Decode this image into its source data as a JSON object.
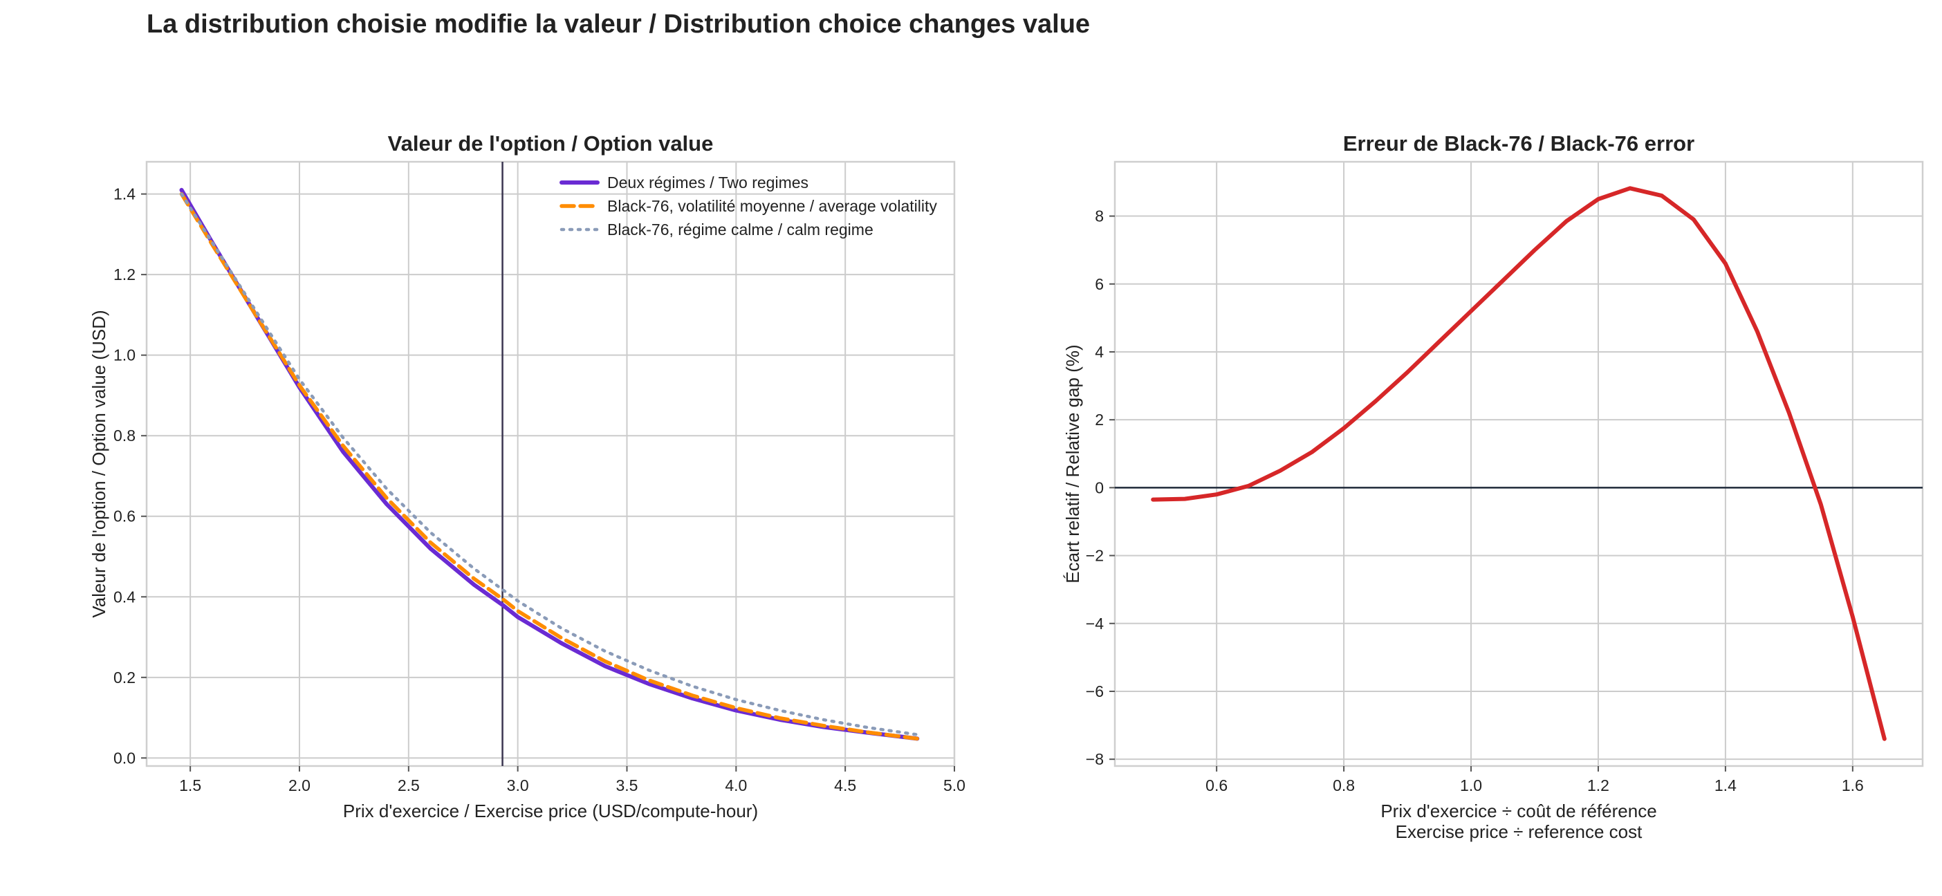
{
  "title": "La distribution choisie modifie la valeur / Distribution choice changes value",
  "colors": {
    "two_regimes": "#6a2bd3",
    "avg_vol": "#ff8c00",
    "calm": "#8a9bb8",
    "error": "#d62728",
    "ref_line": "#3a3550",
    "zero_line": "#1f2a3a"
  },
  "chart_data": [
    {
      "type": "line",
      "title": "Valeur de l'option / Option value",
      "xlabel": "Prix d'exercice / Exercise price (USD/compute-hour)",
      "ylabel": "Valeur de l'option / Option value (USD)",
      "xlim": [
        1.3,
        5.0
      ],
      "ylim": [
        -0.02,
        1.48
      ],
      "xticks": [
        1.5,
        2.0,
        2.5,
        3.0,
        3.5,
        4.0,
        4.5,
        5.0
      ],
      "xtick_labels": [
        "1.5",
        "2.0",
        "2.5",
        "3.0",
        "3.5",
        "4.0",
        "4.5",
        "5.0"
      ],
      "yticks": [
        0.0,
        0.2,
        0.4,
        0.6,
        0.8,
        1.0,
        1.2,
        1.4
      ],
      "ytick_labels": [
        "0.0",
        "0.2",
        "0.4",
        "0.6",
        "0.8",
        "1.0",
        "1.2",
        "1.4"
      ],
      "grid": true,
      "legend_position": "top-right",
      "vline_x": 2.93,
      "series": [
        {
          "name": "Deux régimes / Two regimes",
          "style": "solid",
          "x": [
            1.46,
            1.6,
            1.8,
            2.0,
            2.2,
            2.4,
            2.6,
            2.8,
            2.93,
            3.0,
            3.2,
            3.4,
            3.6,
            3.8,
            4.0,
            4.2,
            4.4,
            4.6,
            4.83
          ],
          "y": [
            1.41,
            1.28,
            1.1,
            0.92,
            0.76,
            0.63,
            0.52,
            0.43,
            0.38,
            0.35,
            0.285,
            0.228,
            0.184,
            0.148,
            0.118,
            0.095,
            0.077,
            0.063,
            0.048
          ]
        },
        {
          "name": "Black-76, volatilité moyenne / average volatility",
          "style": "dashed",
          "x": [
            1.46,
            1.6,
            1.8,
            2.0,
            2.2,
            2.4,
            2.6,
            2.8,
            2.93,
            3.0,
            3.2,
            3.4,
            3.6,
            3.8,
            4.0,
            4.2,
            4.4,
            4.6,
            4.83
          ],
          "y": [
            1.4,
            1.275,
            1.1,
            0.925,
            0.775,
            0.645,
            0.535,
            0.445,
            0.395,
            0.365,
            0.298,
            0.24,
            0.193,
            0.155,
            0.124,
            0.099,
            0.08,
            0.064,
            0.048
          ]
        },
        {
          "name": "Black-76, régime calme / calm regime",
          "style": "dotted",
          "x": [
            1.46,
            1.6,
            1.8,
            2.0,
            2.2,
            2.4,
            2.6,
            2.8,
            2.93,
            3.0,
            3.2,
            3.4,
            3.6,
            3.8,
            4.0,
            4.2,
            4.4,
            4.6,
            4.83
          ],
          "y": [
            1.4,
            1.28,
            1.11,
            0.94,
            0.795,
            0.668,
            0.56,
            0.47,
            0.418,
            0.39,
            0.322,
            0.265,
            0.218,
            0.178,
            0.145,
            0.118,
            0.095,
            0.076,
            0.058
          ]
        }
      ]
    },
    {
      "type": "line",
      "title": "Erreur de Black-76 / Black-76 error",
      "xlabel": "Prix d'exercice ÷ coût de référence",
      "xlabel2": "Exercise price ÷ reference cost",
      "ylabel": "Écart relatif / Relative gap (%)",
      "xlim": [
        0.44,
        1.71
      ],
      "ylim": [
        -8.2,
        9.6
      ],
      "xticks": [
        0.6,
        0.8,
        1.0,
        1.2,
        1.4,
        1.6
      ],
      "xtick_labels": [
        "0.6",
        "0.8",
        "1.0",
        "1.2",
        "1.4",
        "1.6"
      ],
      "yticks": [
        -8,
        -6,
        -4,
        -2,
        0,
        2,
        4,
        6,
        8
      ],
      "ytick_labels": [
        "−8",
        "−6",
        "−4",
        "−2",
        "0",
        "2",
        "4",
        "6",
        "8"
      ],
      "grid": true,
      "hline_y": 0,
      "series": [
        {
          "style": "solid",
          "x": [
            0.5,
            0.55,
            0.6,
            0.65,
            0.7,
            0.75,
            0.8,
            0.85,
            0.9,
            0.95,
            1.0,
            1.05,
            1.1,
            1.15,
            1.2,
            1.25,
            1.3,
            1.35,
            1.4,
            1.45,
            1.5,
            1.55,
            1.6,
            1.65
          ],
          "y": [
            -0.35,
            -0.33,
            -0.2,
            0.05,
            0.5,
            1.05,
            1.75,
            2.55,
            3.4,
            4.3,
            5.2,
            6.1,
            7.0,
            7.85,
            8.5,
            8.82,
            8.6,
            7.9,
            6.6,
            4.6,
            2.2,
            -0.5,
            -3.8,
            -7.4
          ]
        }
      ]
    }
  ]
}
